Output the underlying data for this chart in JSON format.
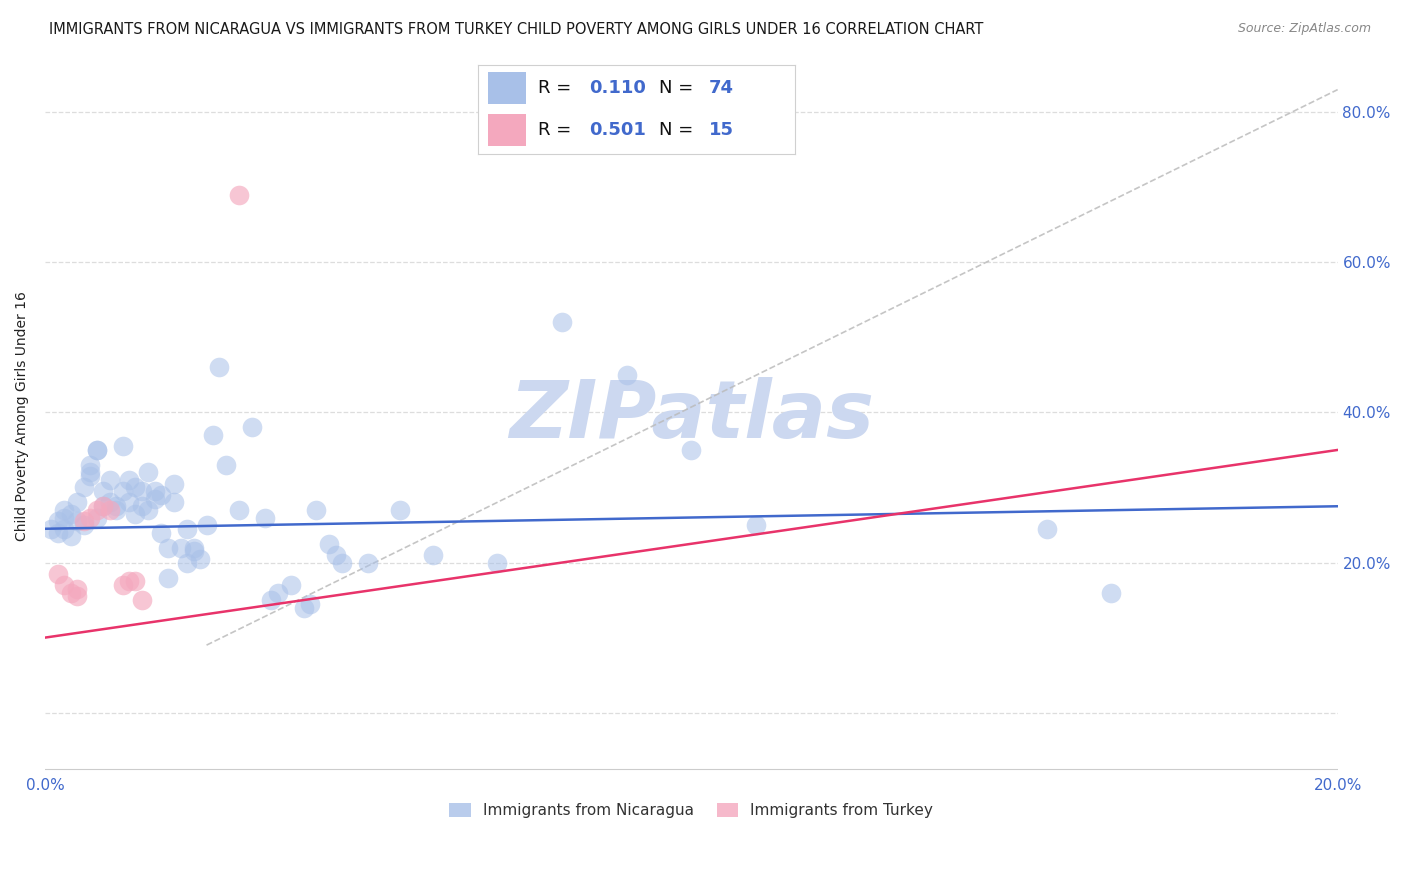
{
  "title": "IMMIGRANTS FROM NICARAGUA VS IMMIGRANTS FROM TURKEY CHILD POVERTY AMONG GIRLS UNDER 16 CORRELATION CHART",
  "source": "Source: ZipAtlas.com",
  "ylabel": "Child Poverty Among Girls Under 16",
  "r_nicaragua": 0.11,
  "n_nicaragua": 74,
  "r_turkey": 0.501,
  "n_turkey": 15,
  "x_min": 0.0,
  "x_max": 0.2,
  "y_min": -0.08,
  "y_max": 0.87,
  "y_ticks": [
    0.0,
    0.2,
    0.4,
    0.6,
    0.8
  ],
  "y_tick_labels_right": [
    "",
    "20.0%",
    "40.0%",
    "60.0%",
    "80.0%"
  ],
  "x_ticks": [
    0.0,
    0.05,
    0.1,
    0.15,
    0.2
  ],
  "x_tick_labels": [
    "0.0%",
    "",
    "",
    "",
    "20.0%"
  ],
  "color_nicaragua": "#a8c0e8",
  "color_turkey": "#f4a8be",
  "trendline_nicaragua": "#4169cc",
  "trendline_turkey": "#e8336a",
  "tick_color": "#4169cc",
  "watermark_color": "#ccd8f0",
  "grid_color": "#dddddd",
  "background_color": "#ffffff",
  "scatter_nicaragua": [
    [
      0.001,
      0.245
    ],
    [
      0.002,
      0.255
    ],
    [
      0.002,
      0.24
    ],
    [
      0.003,
      0.26
    ],
    [
      0.003,
      0.245
    ],
    [
      0.003,
      0.27
    ],
    [
      0.004,
      0.265
    ],
    [
      0.004,
      0.235
    ],
    [
      0.005,
      0.255
    ],
    [
      0.005,
      0.28
    ],
    [
      0.006,
      0.3
    ],
    [
      0.006,
      0.25
    ],
    [
      0.007,
      0.32
    ],
    [
      0.007,
      0.315
    ],
    [
      0.007,
      0.33
    ],
    [
      0.008,
      0.35
    ],
    [
      0.008,
      0.35
    ],
    [
      0.008,
      0.26
    ],
    [
      0.009,
      0.275
    ],
    [
      0.009,
      0.295
    ],
    [
      0.01,
      0.31
    ],
    [
      0.01,
      0.28
    ],
    [
      0.011,
      0.275
    ],
    [
      0.011,
      0.27
    ],
    [
      0.012,
      0.355
    ],
    [
      0.012,
      0.295
    ],
    [
      0.013,
      0.31
    ],
    [
      0.013,
      0.28
    ],
    [
      0.014,
      0.3
    ],
    [
      0.014,
      0.265
    ],
    [
      0.015,
      0.275
    ],
    [
      0.015,
      0.295
    ],
    [
      0.016,
      0.32
    ],
    [
      0.016,
      0.27
    ],
    [
      0.017,
      0.295
    ],
    [
      0.017,
      0.285
    ],
    [
      0.018,
      0.29
    ],
    [
      0.018,
      0.24
    ],
    [
      0.019,
      0.18
    ],
    [
      0.019,
      0.22
    ],
    [
      0.02,
      0.305
    ],
    [
      0.02,
      0.28
    ],
    [
      0.021,
      0.22
    ],
    [
      0.022,
      0.245
    ],
    [
      0.022,
      0.2
    ],
    [
      0.023,
      0.215
    ],
    [
      0.023,
      0.22
    ],
    [
      0.024,
      0.205
    ],
    [
      0.025,
      0.25
    ],
    [
      0.026,
      0.37
    ],
    [
      0.027,
      0.46
    ],
    [
      0.028,
      0.33
    ],
    [
      0.03,
      0.27
    ],
    [
      0.032,
      0.38
    ],
    [
      0.034,
      0.26
    ],
    [
      0.035,
      0.15
    ],
    [
      0.036,
      0.16
    ],
    [
      0.038,
      0.17
    ],
    [
      0.04,
      0.14
    ],
    [
      0.041,
      0.145
    ],
    [
      0.042,
      0.27
    ],
    [
      0.044,
      0.225
    ],
    [
      0.045,
      0.21
    ],
    [
      0.046,
      0.2
    ],
    [
      0.05,
      0.2
    ],
    [
      0.055,
      0.27
    ],
    [
      0.06,
      0.21
    ],
    [
      0.07,
      0.2
    ],
    [
      0.08,
      0.52
    ],
    [
      0.09,
      0.45
    ],
    [
      0.1,
      0.35
    ],
    [
      0.11,
      0.25
    ],
    [
      0.155,
      0.245
    ],
    [
      0.165,
      0.16
    ]
  ],
  "scatter_turkey": [
    [
      0.002,
      0.185
    ],
    [
      0.003,
      0.17
    ],
    [
      0.004,
      0.16
    ],
    [
      0.005,
      0.165
    ],
    [
      0.005,
      0.155
    ],
    [
      0.006,
      0.255
    ],
    [
      0.007,
      0.26
    ],
    [
      0.008,
      0.27
    ],
    [
      0.009,
      0.275
    ],
    [
      0.01,
      0.27
    ],
    [
      0.012,
      0.17
    ],
    [
      0.013,
      0.175
    ],
    [
      0.014,
      0.175
    ],
    [
      0.015,
      0.15
    ],
    [
      0.03,
      0.69
    ]
  ],
  "ref_line_color": "#bbbbbb",
  "ref_line_x": [
    0.025,
    0.2
  ],
  "ref_line_y": [
    0.09,
    0.83
  ],
  "nic_trend_x": [
    0.0,
    0.2
  ],
  "nic_trend_y": [
    0.245,
    0.275
  ],
  "tur_trend_x": [
    0.0,
    0.2
  ],
  "tur_trend_y": [
    0.1,
    0.35
  ],
  "title_fontsize": 10.5,
  "source_fontsize": 9,
  "axis_label_fontsize": 10,
  "tick_fontsize": 11,
  "legend_fontsize": 13
}
